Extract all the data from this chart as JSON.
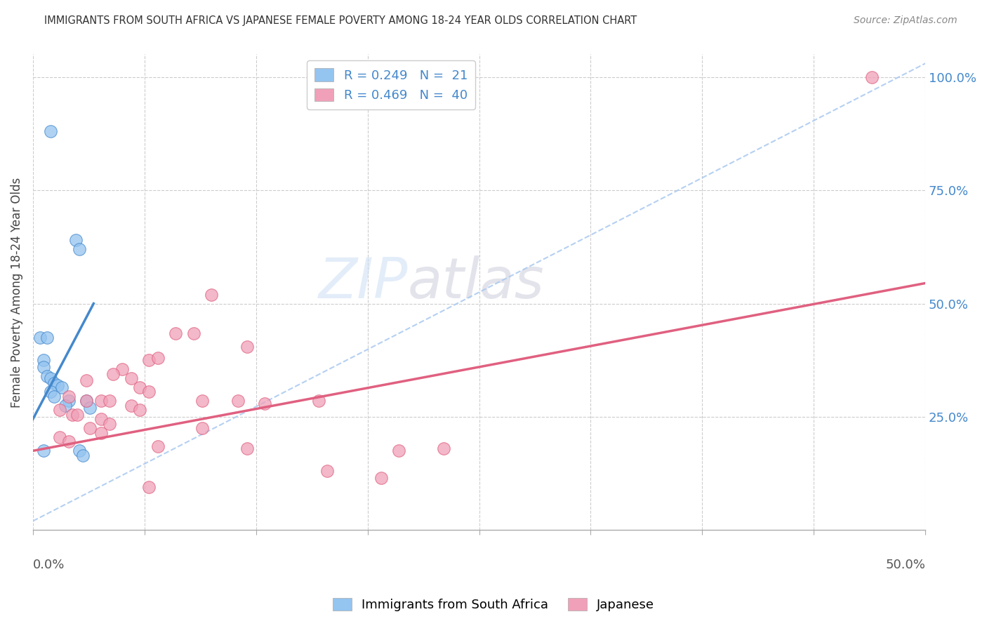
{
  "title": "IMMIGRANTS FROM SOUTH AFRICA VS JAPANESE FEMALE POVERTY AMONG 18-24 YEAR OLDS CORRELATION CHART",
  "source": "Source: ZipAtlas.com",
  "ylabel": "Female Poverty Among 18-24 Year Olds",
  "right_yticks": [
    "100.0%",
    "75.0%",
    "50.0%",
    "25.0%"
  ],
  "right_ytick_vals": [
    1.0,
    0.75,
    0.5,
    0.25
  ],
  "watermark_zip": "ZIP",
  "watermark_atlas": "atlas",
  "legend_r1": "R = 0.249",
  "legend_n1": "N =  21",
  "legend_r2": "R = 0.469",
  "legend_n2": "N =  40",
  "color_blue": "#94c4f0",
  "color_pink": "#f0a0b8",
  "color_line_blue": "#4488cc",
  "color_line_pink": "#e06080",
  "color_dash": "#a8c8f0",
  "color_title": "#333333",
  "color_right_axis": "#4488cc",
  "blue_points": [
    [
      0.01,
      0.88
    ],
    [
      0.024,
      0.64
    ],
    [
      0.026,
      0.62
    ],
    [
      0.004,
      0.425
    ],
    [
      0.008,
      0.425
    ],
    [
      0.006,
      0.375
    ],
    [
      0.006,
      0.36
    ],
    [
      0.008,
      0.34
    ],
    [
      0.01,
      0.335
    ],
    [
      0.012,
      0.325
    ],
    [
      0.014,
      0.32
    ],
    [
      0.016,
      0.315
    ],
    [
      0.01,
      0.305
    ],
    [
      0.012,
      0.295
    ],
    [
      0.02,
      0.285
    ],
    [
      0.03,
      0.285
    ],
    [
      0.018,
      0.275
    ],
    [
      0.032,
      0.27
    ],
    [
      0.006,
      0.175
    ],
    [
      0.026,
      0.175
    ],
    [
      0.028,
      0.165
    ]
  ],
  "pink_points": [
    [
      0.47,
      1.0
    ],
    [
      0.1,
      0.52
    ],
    [
      0.08,
      0.435
    ],
    [
      0.09,
      0.435
    ],
    [
      0.12,
      0.405
    ],
    [
      0.065,
      0.375
    ],
    [
      0.05,
      0.355
    ],
    [
      0.045,
      0.345
    ],
    [
      0.03,
      0.33
    ],
    [
      0.055,
      0.335
    ],
    [
      0.06,
      0.315
    ],
    [
      0.065,
      0.305
    ],
    [
      0.02,
      0.295
    ],
    [
      0.03,
      0.285
    ],
    [
      0.038,
      0.285
    ],
    [
      0.043,
      0.285
    ],
    [
      0.055,
      0.275
    ],
    [
      0.06,
      0.265
    ],
    [
      0.015,
      0.265
    ],
    [
      0.022,
      0.255
    ],
    [
      0.025,
      0.255
    ],
    [
      0.038,
      0.245
    ],
    [
      0.043,
      0.235
    ],
    [
      0.032,
      0.225
    ],
    [
      0.038,
      0.215
    ],
    [
      0.015,
      0.205
    ],
    [
      0.02,
      0.195
    ],
    [
      0.095,
      0.285
    ],
    [
      0.115,
      0.285
    ],
    [
      0.095,
      0.225
    ],
    [
      0.13,
      0.28
    ],
    [
      0.16,
      0.285
    ],
    [
      0.07,
      0.38
    ],
    [
      0.165,
      0.13
    ],
    [
      0.195,
      0.115
    ],
    [
      0.065,
      0.095
    ],
    [
      0.07,
      0.185
    ],
    [
      0.23,
      0.18
    ],
    [
      0.12,
      0.18
    ],
    [
      0.205,
      0.175
    ]
  ],
  "xlim": [
    0.0,
    0.5
  ],
  "ylim": [
    0.0,
    1.05
  ],
  "blue_line_x0": 0.0,
  "blue_line_x1": 0.034,
  "blue_line_y0": 0.245,
  "blue_line_y1": 0.5,
  "pink_line_x0": 0.0,
  "pink_line_x1": 0.5,
  "pink_line_y0": 0.175,
  "pink_line_y1": 0.545,
  "dash_line_x0": 0.0,
  "dash_line_x1": 0.5,
  "dash_line_y0": 0.02,
  "dash_line_y1": 1.03
}
